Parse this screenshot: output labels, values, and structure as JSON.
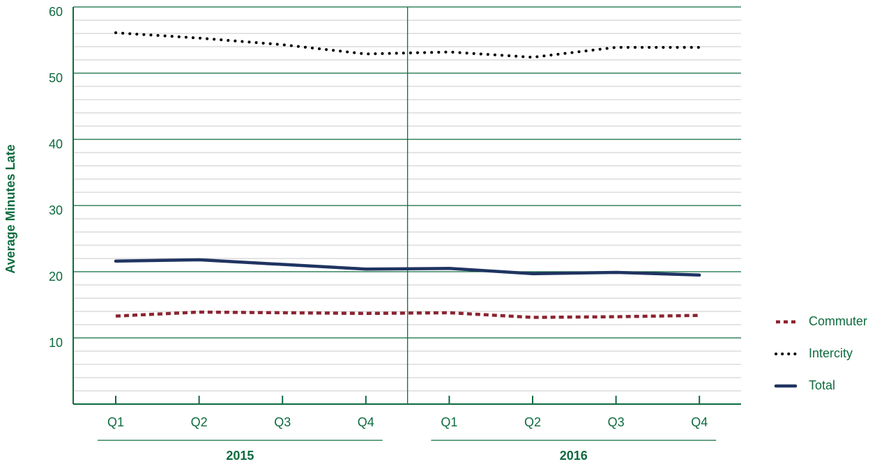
{
  "chart_data": {
    "type": "line",
    "y_label": "Average Minutes Late",
    "categories": [
      "Q1",
      "Q2",
      "Q3",
      "Q4",
      "Q1",
      "Q2",
      "Q3",
      "Q4"
    ],
    "groups": [
      "2015",
      "2016"
    ],
    "series": [
      {
        "name": "Commuter",
        "color": "#8b2331",
        "values": [
          13.3,
          13.9,
          13.8,
          13.7,
          13.8,
          13.1,
          13.2,
          13.4
        ]
      },
      {
        "name": "Intercity",
        "color": "#000000",
        "values": [
          56.1,
          55.3,
          54.3,
          52.9,
          53.2,
          52.4,
          53.9,
          53.9
        ]
      },
      {
        "name": "Total",
        "color": "#1f3461",
        "values": [
          21.6,
          21.8,
          21.1,
          20.4,
          20.5,
          19.7,
          19.9,
          19.5
        ]
      }
    ],
    "ylim": [
      0,
      60
    ],
    "yticks": [
      10,
      20,
      30,
      40,
      50,
      60
    ],
    "grid": true,
    "legend": "right"
  }
}
